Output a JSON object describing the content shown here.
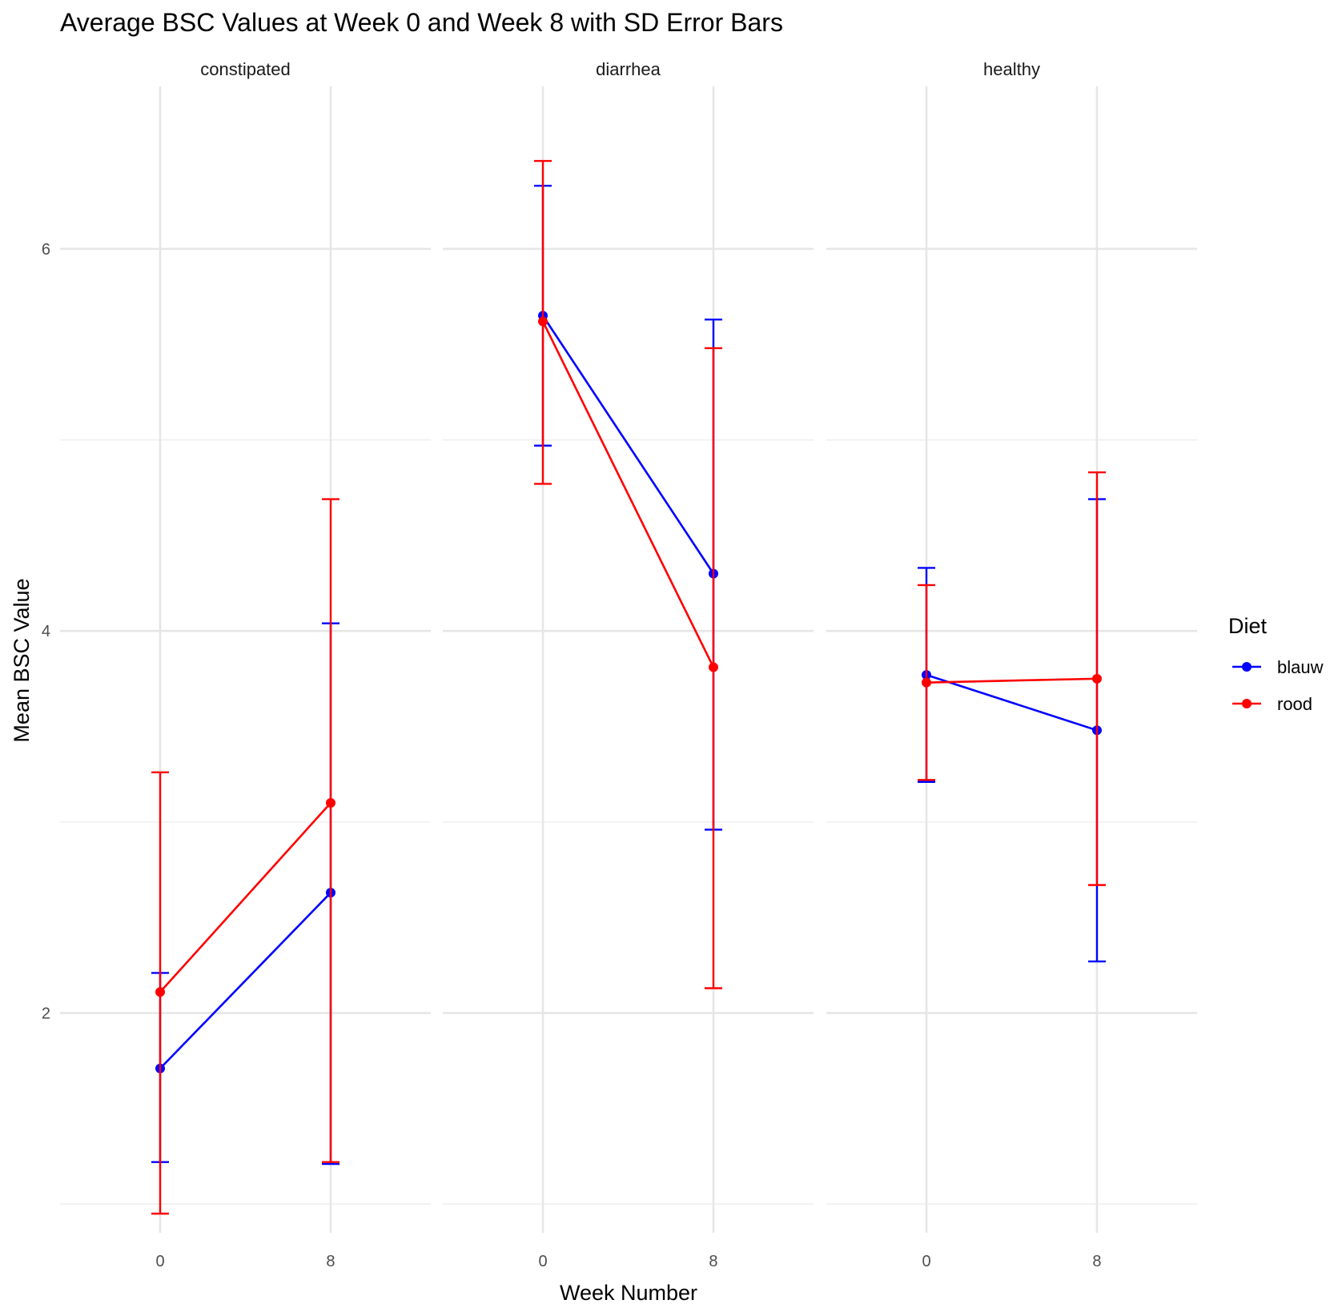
{
  "chart_data": {
    "type": "line",
    "title": "Average BSC Values at Week 0 and Week 8 with SD Error Bars",
    "xlabel": "Week Number",
    "ylabel": "Mean BSC Value",
    "x": [
      0,
      8
    ],
    "x_tick_labels": [
      "0",
      "8"
    ],
    "ylim": [
      0.85,
      6.85
    ],
    "y_ticks": [
      2,
      4,
      6
    ],
    "y_tick_labels": [
      "2",
      "4",
      "6"
    ],
    "grid": true,
    "legend": {
      "title": "Diet",
      "placement": "right",
      "entries": [
        "blauw",
        "rood"
      ]
    },
    "colors": {
      "blauw": "#0000ff",
      "rood": "#ff0000"
    },
    "facets": [
      {
        "label": "constipated",
        "series": [
          {
            "name": "blauw",
            "values": [
              1.71,
              2.63
            ],
            "sd_lower": [
              1.22,
              1.21
            ],
            "sd_upper": [
              2.21,
              4.04
            ]
          },
          {
            "name": "rood",
            "values": [
              2.11,
              3.1
            ],
            "sd_lower": [
              0.95,
              1.22
            ],
            "sd_upper": [
              3.26,
              4.69
            ]
          }
        ]
      },
      {
        "label": "diarrhea",
        "series": [
          {
            "name": "blauw",
            "values": [
              5.65,
              4.3
            ],
            "sd_lower": [
              4.97,
              2.96
            ],
            "sd_upper": [
              6.33,
              5.63
            ]
          },
          {
            "name": "rood",
            "values": [
              5.62,
              3.81
            ],
            "sd_lower": [
              4.77,
              2.13
            ],
            "sd_upper": [
              6.46,
              5.48
            ]
          }
        ]
      },
      {
        "label": "healthy",
        "series": [
          {
            "name": "blauw",
            "values": [
              3.77,
              3.48
            ],
            "sd_lower": [
              3.21,
              2.27
            ],
            "sd_upper": [
              4.33,
              4.69
            ]
          },
          {
            "name": "rood",
            "values": [
              3.73,
              3.75
            ],
            "sd_lower": [
              3.22,
              2.67
            ],
            "sd_upper": [
              4.24,
              4.83
            ]
          }
        ]
      }
    ]
  }
}
